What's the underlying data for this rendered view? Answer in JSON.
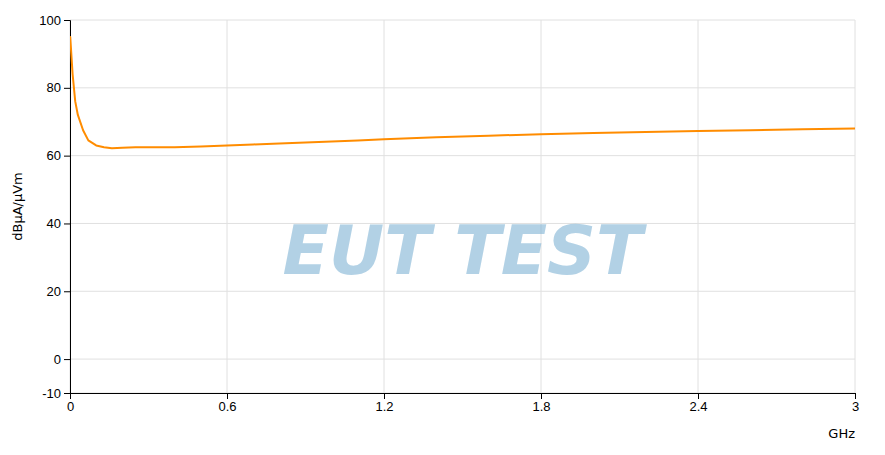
{
  "chart_data": {
    "type": "line",
    "xlabel": "GHz",
    "ylabel": "dBµA/µVm",
    "x": [
      0.001,
      0.005,
      0.01,
      0.02,
      0.03,
      0.05,
      0.07,
      0.1,
      0.13,
      0.16,
      0.2,
      0.25,
      0.3,
      0.35,
      0.4,
      0.5,
      0.6,
      0.7,
      0.8,
      0.9,
      1.0,
      1.1,
      1.2,
      1.4,
      1.6,
      1.8,
      2.0,
      2.2,
      2.4,
      2.6,
      2.8,
      3.0
    ],
    "values": [
      95.0,
      90.0,
      84.0,
      76.0,
      72.0,
      67.5,
      64.5,
      63.0,
      62.5,
      62.2,
      62.3,
      62.5,
      62.5,
      62.5,
      62.5,
      62.7,
      63.0,
      63.3,
      63.6,
      63.9,
      64.2,
      64.5,
      64.8,
      65.4,
      65.9,
      66.3,
      66.7,
      67.0,
      67.3,
      67.5,
      67.8,
      68.0
    ],
    "color": "#FF8C00",
    "xlim": [
      0,
      3
    ],
    "ylim": [
      -10,
      100
    ],
    "xticks": [
      0,
      0.6,
      1.2,
      1.8,
      2.4,
      3
    ],
    "yticks": [
      -10,
      0,
      20,
      40,
      60,
      80,
      100
    ],
    "grid": true,
    "annotations": [
      {
        "text": "EUT TEST",
        "color": "#7fb3d3"
      }
    ]
  }
}
